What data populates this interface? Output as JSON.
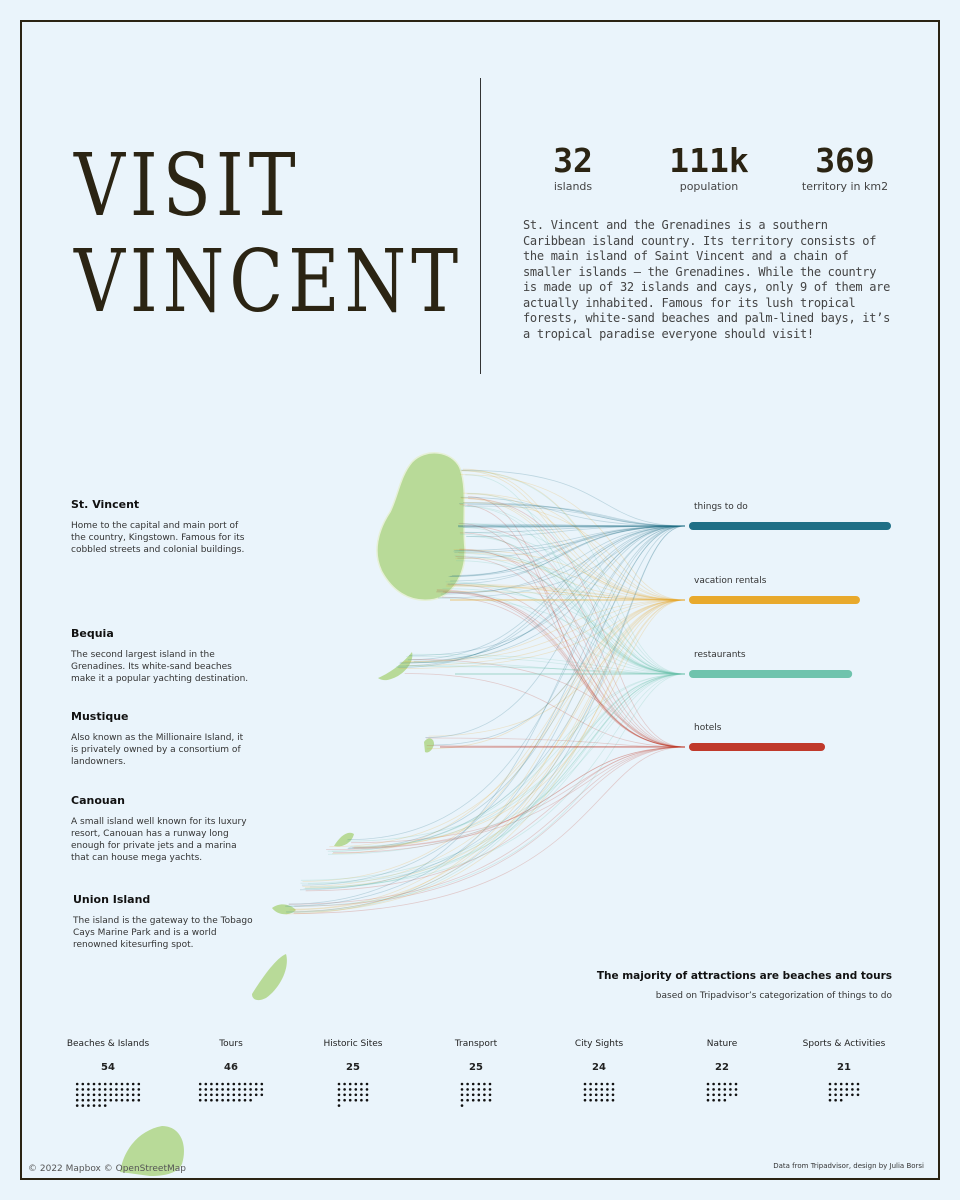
{
  "title_line1": "VISIT",
  "title_line2": "VINCENT",
  "stats": [
    {
      "value": "32",
      "label": "islands"
    },
    {
      "value": "111k",
      "label": "population"
    },
    {
      "value": "369",
      "label": "territory in km2"
    }
  ],
  "intro": "St. Vincent and the Grenadines is a southern Caribbean island country. Its territory consists of the main island of Saint Vincent and a chain of  smaller islands – the Grenadines. While the country is made up of 32 islands and cays, only 9 of them are actually inhabited. Famous for its lush tropical forests, white-sand beaches and palm-lined bays, it’s a tropical paradise everyone should visit!",
  "islands": [
    {
      "name": "St. Vincent",
      "desc": "Home to the capital and main port of the country, Kingstown. Famous for its cobbled streets and colonial buildings."
    },
    {
      "name": "Bequia",
      "desc": "The second largest island in the Grenadines. Its white-sand beaches make it a popular yachting destination."
    },
    {
      "name": "Mustique",
      "desc": "Also known as the Millionaire Island, it is privately owned by a consortium of landowners."
    },
    {
      "name": "Canouan",
      "desc": "A small island well known for its luxury resort, Canouan has a runway long enough for private jets and a marina that can house mega yachts."
    },
    {
      "name": "Union Island",
      "desc": "The island is the gateway to the Tobago Cays Marine Park and is a world renowned kitesurfing spot."
    }
  ],
  "note_title": "The majority of attractions are beaches and tours",
  "note_sub": "based on Tripadvisor’s categorization of things to do",
  "credit_left": "© 2022 Mapbox © OpenStreetMap",
  "credit_right": "Data from Tripadvisor, design by Julia Borsi",
  "chart_data": [
    {
      "type": "bar",
      "categories": [
        "things to do",
        "vacation rentals",
        "restaurants",
        "hotels"
      ],
      "values": [
        100,
        84,
        80,
        66
      ],
      "colors": [
        "#1f6f86",
        "#e8a92c",
        "#6fc3ad",
        "#c0392b"
      ]
    },
    {
      "type": "bar",
      "categories": [
        "Beaches & Islands",
        "Tours",
        "Historic Sites",
        "Transport",
        "City Sights",
        "Nature",
        "Sports & Activities"
      ],
      "values": [
        54,
        46,
        25,
        25,
        24,
        22,
        21
      ]
    }
  ]
}
